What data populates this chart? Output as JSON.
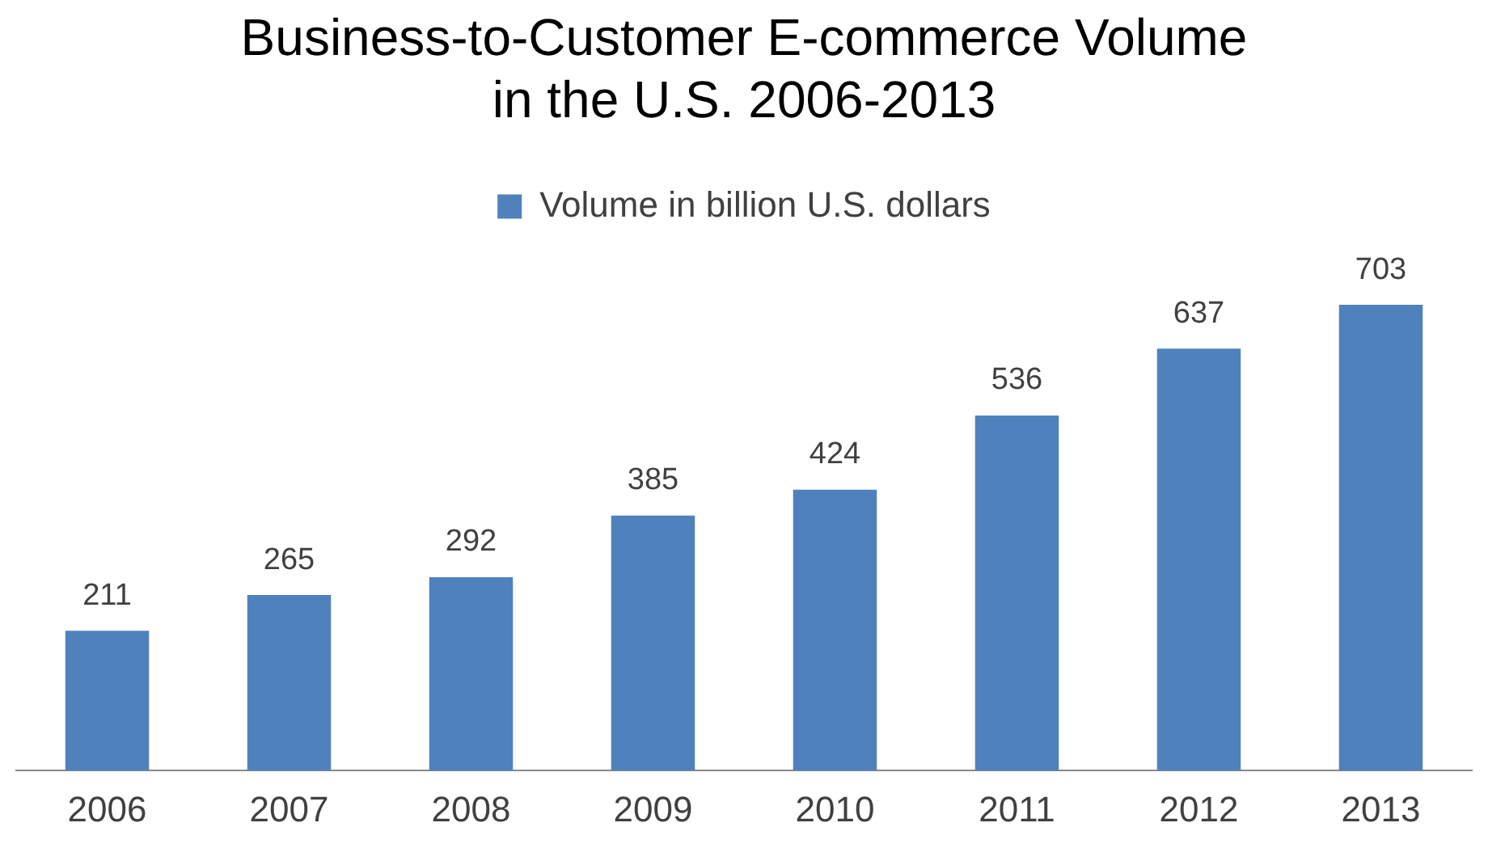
{
  "chart_data": {
    "type": "bar",
    "title": "Business-to-Customer E-commerce Volume in the U.S. 2006-2013",
    "categories": [
      "2006",
      "2007",
      "2008",
      "2009",
      "2010",
      "2011",
      "2012",
      "2013"
    ],
    "series": [
      {
        "name": "Volume in billion U.S. dollars",
        "color": "#4f81bd",
        "values": [
          211,
          265,
          292,
          385,
          424,
          536,
          637,
          703
        ]
      }
    ],
    "data_labels": true,
    "legend": "top",
    "grid": false
  }
}
